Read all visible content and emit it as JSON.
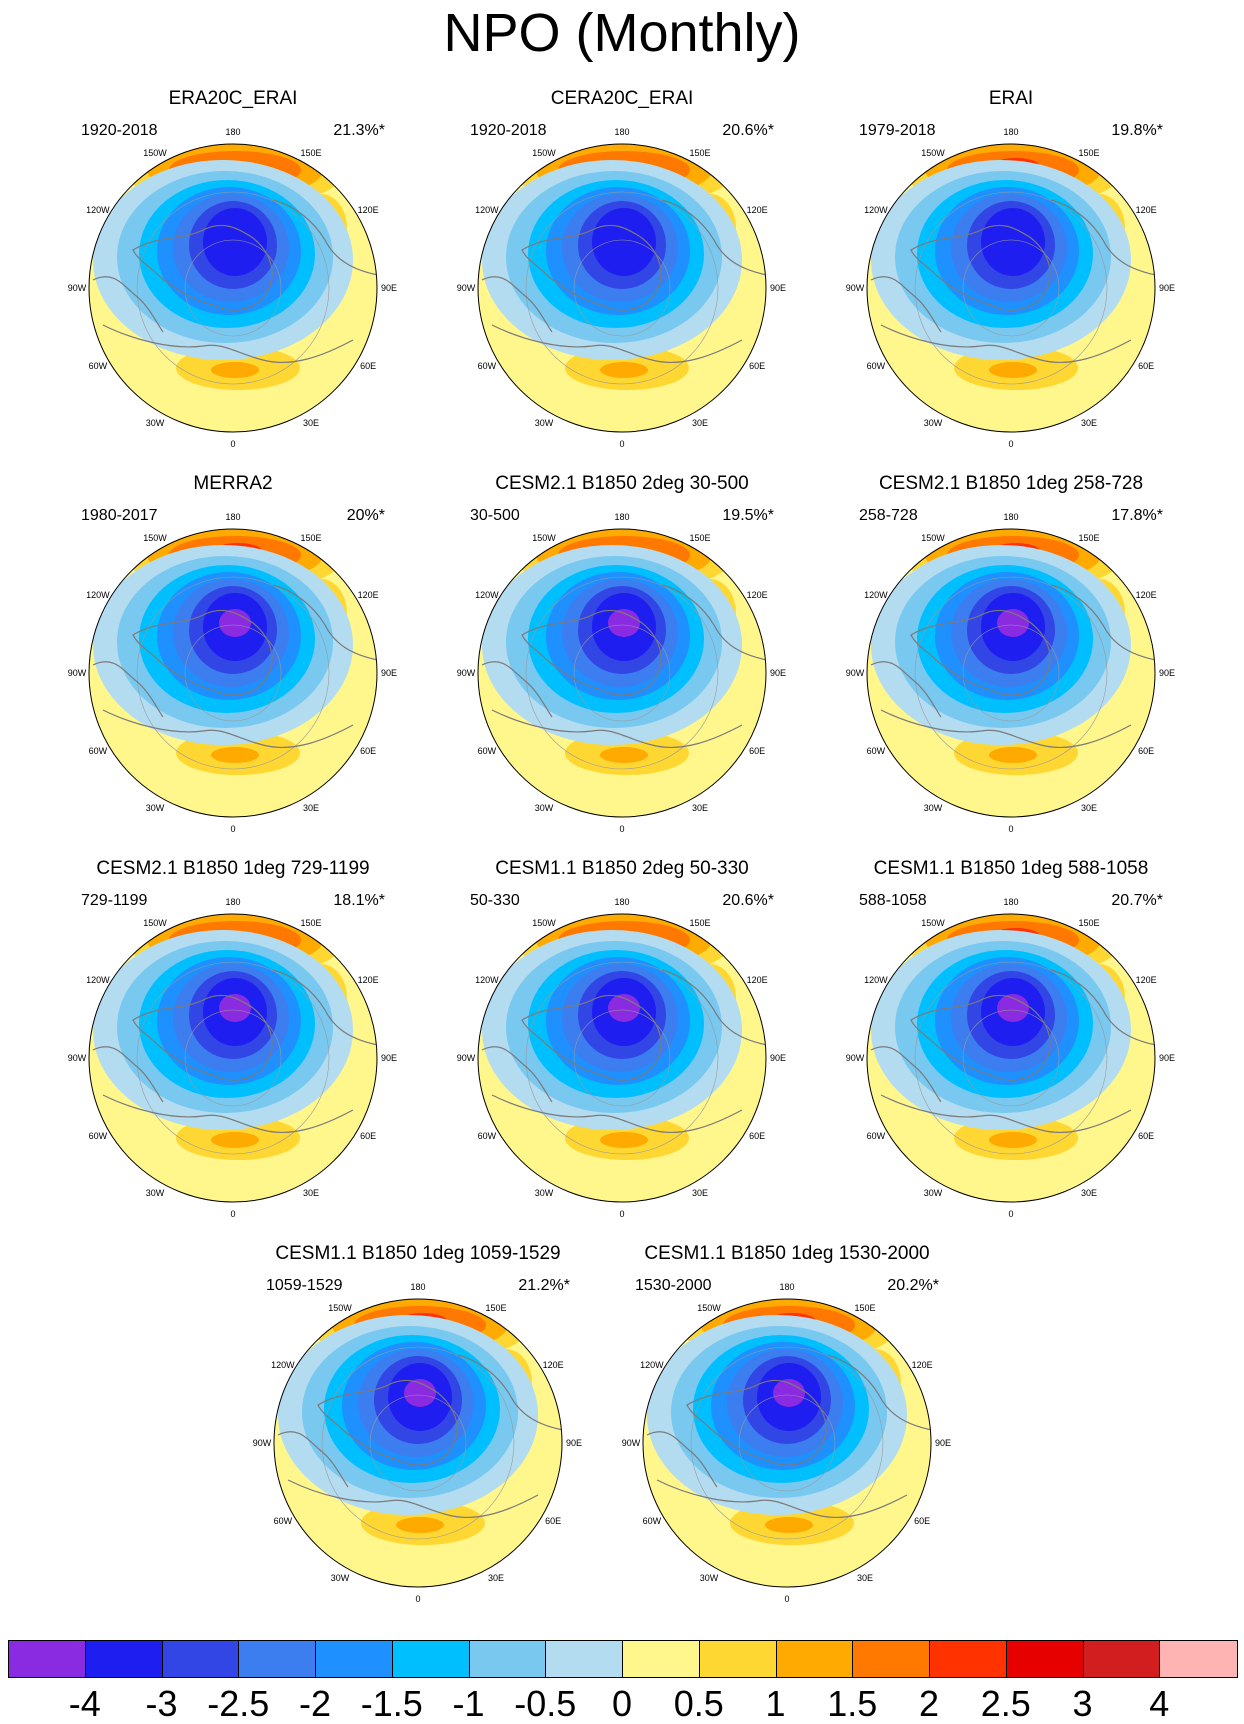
{
  "title": "NPO (Monthly)",
  "panels": [
    {
      "id": "p1",
      "title": "ERA20C_ERAI",
      "period": "1920-2018",
      "variance": "21.3%*"
    },
    {
      "id": "p2",
      "title": "CERA20C_ERAI",
      "period": "1920-2018",
      "variance": "20.6%*"
    },
    {
      "id": "p3",
      "title": "ERAI",
      "period": "1979-2018",
      "variance": "19.8%*"
    },
    {
      "id": "p4",
      "title": "MERRA2",
      "period": "1980-2017",
      "variance": "20%*"
    },
    {
      "id": "p5",
      "title": "CESM2.1 B1850 2deg 30-500",
      "period": "30-500",
      "variance": "19.5%*"
    },
    {
      "id": "p6",
      "title": "CESM2.1 B1850 1deg 258-728",
      "period": "258-728",
      "variance": "17.8%*"
    },
    {
      "id": "p7",
      "title": "CESM2.1 B1850 1deg 729-1199",
      "period": "729-1199",
      "variance": "18.1%*"
    },
    {
      "id": "p8",
      "title": "CESM1.1 B1850 2deg 50-330",
      "period": "50-330",
      "variance": "20.6%*"
    },
    {
      "id": "p9",
      "title": "CESM1.1 B1850 1deg 588-1058",
      "period": "588-1058",
      "variance": "20.7%*"
    },
    {
      "id": "p10",
      "title": "CESM1.1 B1850 1deg 1059-1529",
      "period": "1059-1529",
      "variance": "21.2%*"
    },
    {
      "id": "p11",
      "title": "CESM1.1 B1850 1deg 1530-2000",
      "period": "1530-2000",
      "variance": "20.2%*"
    }
  ],
  "lon_labels": [
    "180",
    "150E",
    "120E",
    "90E",
    "60E",
    "30E",
    "0",
    "30W",
    "60W",
    "90W",
    "120W",
    "150W"
  ],
  "colorbar": {
    "levels": [
      "-4",
      "-3",
      "-2.5",
      "-2",
      "-1.5",
      "-1",
      "-0.5",
      "0",
      "0.5",
      "1",
      "1.5",
      "2",
      "2.5",
      "3",
      "4"
    ],
    "colors": [
      "#8a2be2",
      "#1e1ef0",
      "#3246e6",
      "#3c7ef0",
      "#1e90ff",
      "#00bfff",
      "#78c8f0",
      "#b4dcf0",
      "#fff68c",
      "#ffd732",
      "#ffaa00",
      "#ff7800",
      "#ff3200",
      "#e60000",
      "#d21e1e",
      "#ffb4b4"
    ]
  }
}
